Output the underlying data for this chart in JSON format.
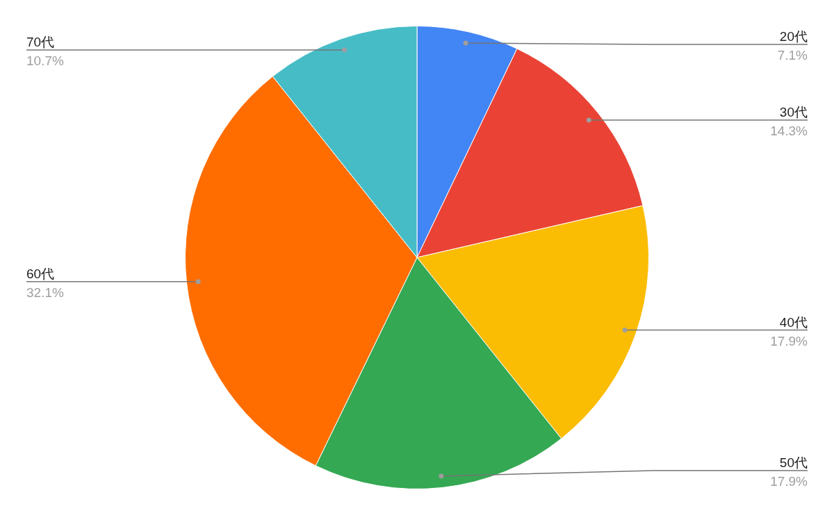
{
  "chart_data": {
    "type": "pie",
    "categories": [
      "20代",
      "30代",
      "40代",
      "50代",
      "60代",
      "70代"
    ],
    "values": [
      7.1,
      14.3,
      17.9,
      17.9,
      32.1,
      10.7
    ],
    "colors": [
      "#4285f4",
      "#ea4335",
      "#fbbc04",
      "#34a853",
      "#ff6d01",
      "#46bdc6"
    ],
    "value_labels": [
      "7.1%",
      "14.3%",
      "17.9%",
      "17.9%",
      "32.1%",
      "10.7%"
    ],
    "legend": false
  }
}
